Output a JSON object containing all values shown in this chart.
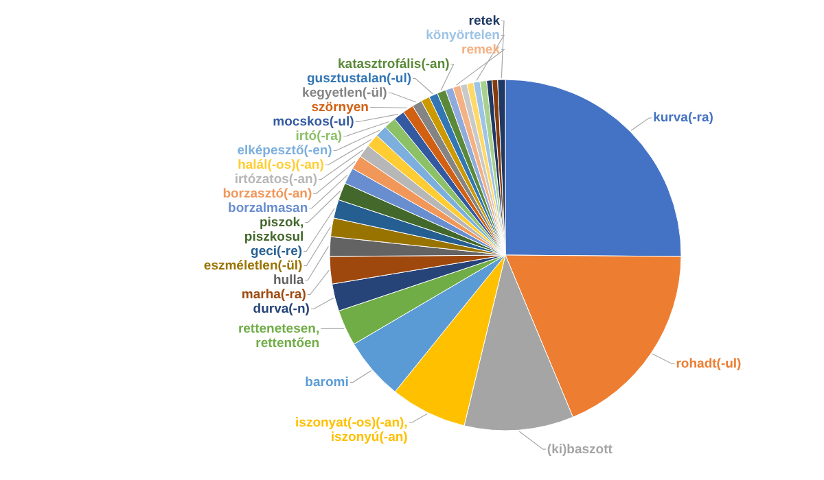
{
  "chart_data": {
    "type": "pie",
    "categories": [
      "kurva(-ra)",
      "rohadt(-ul)",
      "(ki)baszott",
      "iszonyat(-os)(-an), iszonyú(-an)",
      "baromi",
      "rettenetesen, rettentően",
      "durva(-n)",
      "marha(-ra)",
      "hulla",
      "eszméletlen(-ül)",
      "geci(-re)",
      "piszok, piszkosul",
      "borzalmasan",
      "borzasztó(-an)",
      "irtózatos(-an)",
      "halál(-os)(-an)",
      "elképesztő(-en)",
      "irtó(-ra)",
      "mocskos(-ul)",
      "szörnyen",
      "kegyetlen(-ül)",
      null,
      "gusztustalan(-ul)",
      "katasztrofális(-an)",
      null,
      "remek",
      null,
      null,
      "könyörtelen",
      null,
      null,
      null,
      "retek"
    ],
    "values": [
      25,
      18.5,
      10,
      7,
      5.7,
      3.3,
      2.5,
      2.5,
      1.8,
      1.7,
      1.7,
      1.6,
      1.5,
      1.3,
      1.2,
      1.2,
      1.1,
      1.1,
      1.0,
      1.0,
      0.9,
      0.8,
      0.8,
      0.8,
      0.7,
      0.7,
      0.6,
      0.6,
      0.6,
      0.6,
      0.5,
      0.5,
      0.7
    ],
    "colors": [
      "#4472c4",
      "#ed7d31",
      "#a5a5a5",
      "#ffc000",
      "#5b9bd5",
      "#70ad47",
      "#264478",
      "#9e480e",
      "#636363",
      "#997300",
      "#255e91",
      "#43682b",
      "#698ed0",
      "#f1975a",
      "#b7b7b7",
      "#ffcd33",
      "#7cafdd",
      "#8cc168",
      "#335aa1",
      "#d26012",
      "#848484",
      "#cc9a00",
      "#3276b5",
      "#5a8a39",
      "#8faadc",
      "#f4b183",
      "#c9c9c9",
      "#ffd966",
      "#9dc3e6",
      "#a9d18e",
      "#203864",
      "#843c0c",
      "#1f3864"
    ]
  }
}
